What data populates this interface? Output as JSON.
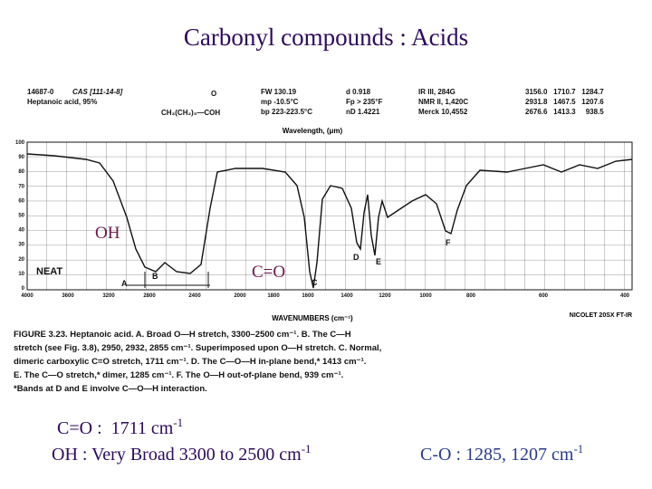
{
  "title": "Carbonyl compounds : Acids",
  "spectrum": {
    "header": [
      "14687-0",
      "CAS [111-14-8]",
      "Heptanoic acid, 95%",
      "CH₃(CH₂)₅—COH",
      "O",
      "FW 130.19",
      "mp -10.5°C",
      "bp 223-223.5°C",
      "d 0.918",
      "Fp > 235°F",
      "nD 1.4221",
      "IR III, 284G",
      "NMR II, 1,420C",
      "Merck 10,4552",
      "3156.0   1710.7   1284.7",
      "2931.8   1467.5   1207.6",
      "2676.6   1413.3     938.5"
    ],
    "top_axis_label": "Wavelength, (μm)",
    "x_axis_label": "WAVENUMBERS (cm⁻¹)",
    "x_ticks": [
      "4000",
      "3600",
      "3200",
      "2800",
      "2400",
      "2000",
      "1800",
      "1600",
      "1400",
      "1200",
      "1000",
      "800",
      "600",
      "400"
    ],
    "y_ticks": [
      "100",
      "90",
      "80",
      "70",
      "60",
      "50",
      "40",
      "30",
      "20",
      "10",
      "0"
    ],
    "sample": "NEAT",
    "instrument": "NICOLET 20SX FT-IR",
    "peak_letters": [
      "A",
      "B",
      "C",
      "D",
      "E",
      "F"
    ],
    "caption": [
      "FIGURE 3.23.  Heptanoic acid. A. Broad O—H stretch, 3300–2500 cm⁻¹. B. The C—H",
      "stretch (see Fig. 3.8), 2950, 2932, 2855 cm⁻¹. Superimposed upon O—H stretch. C. Normal,",
      "dimeric carboxylic C=O stretch, 1711 cm⁻¹. D. The C—O—H in-plane bend,* 1413 cm⁻¹.",
      "E. The C—O stretch,* dimer, 1285 cm⁻¹. F. The O—H out-of-plane bend, 939 cm⁻¹.",
      "*Bands at D and E involve C—O—H interaction."
    ]
  },
  "annotations": {
    "oh": "OH",
    "co": "C=O"
  },
  "notes": [
    {
      "text": "C=O :  1711 cm",
      "sup": "-1"
    },
    {
      "text": "OH : Very Broad 3300 to 2500 cm",
      "sup": "-1"
    },
    {
      "text": "C-O : 1285, 1207 cm",
      "sup": "-1"
    }
  ]
}
